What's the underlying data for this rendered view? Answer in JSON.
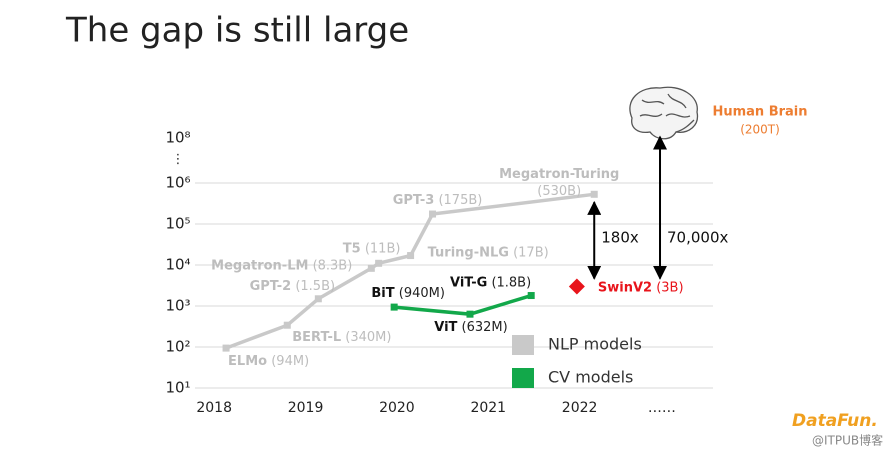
{
  "chart_data": {
    "type": "line",
    "title": "The gap is still large",
    "log_scale": true,
    "grid": true,
    "xlim": [
      2017.79,
      2023.46
    ],
    "xticks": [
      2018,
      2019,
      2020,
      2021,
      2022,
      {
        "value": 2022.9,
        "label": "……"
      }
    ],
    "ylim": [
      10,
      100000000
    ],
    "yticks": [
      {
        "value": 10,
        "label": "10¹"
      },
      {
        "value": 100,
        "label": "10²"
      },
      {
        "value": 1000,
        "label": "10³"
      },
      {
        "value": 10000,
        "label": "10⁴"
      },
      {
        "value": 100000,
        "label": "10⁵"
      },
      {
        "value": 1000000,
        "label": "10⁶"
      }
    ],
    "axis_break_label": "⋮",
    "top_tick": {
      "value": 100000000,
      "label": "10⁸"
    },
    "series": [
      {
        "name": "NLP models",
        "color": "#c9c9c9",
        "x": [
          2018.13,
          2018.8,
          2019.14,
          2019.72,
          2019.8,
          2020.15,
          2020.39,
          2022.16
        ],
        "values": [
          94,
          340,
          1500,
          8300,
          11000,
          17000,
          175000,
          530000
        ],
        "labels": [
          "ELMo",
          "BERT-L",
          "GPT-2",
          "Megatron-LM",
          "T5",
          "Turing-NLG",
          "GPT-3",
          "Megatron-Turing"
        ],
        "value_labels": [
          "(94M)",
          "(340M)",
          "(1.5B)",
          "(8.3B)",
          "(11B)",
          "(17B)",
          "(175B)",
          "(530B)"
        ]
      },
      {
        "name": "CV models",
        "color": "#12a84a",
        "x": [
          2019.97,
          2020.8,
          2021.47
        ],
        "values": [
          940,
          632,
          1800
        ],
        "labels": [
          "BiT",
          "ViT",
          "ViT-G"
        ],
        "value_labels": [
          "(940M)",
          "(632M)",
          "(1.8B)"
        ]
      }
    ],
    "highlight": {
      "label": "SwinV2",
      "value_label": "(3B)",
      "x": 2021.97,
      "value": 3000,
      "color": "#e8141b"
    },
    "brain": {
      "label": "Human Brain",
      "value_label": "(200T)",
      "value": 200000000,
      "color": "#ed7d31"
    },
    "annotations": [
      {
        "text": "180x",
        "x": 2022.16,
        "from": 530000,
        "to": 3000
      },
      {
        "text": "70,000x",
        "x": 2022.88,
        "from": 3000,
        "to": 200000000
      }
    ],
    "watermark": {
      "logo": "DataFun.",
      "source": "@ITPUB博客"
    }
  }
}
